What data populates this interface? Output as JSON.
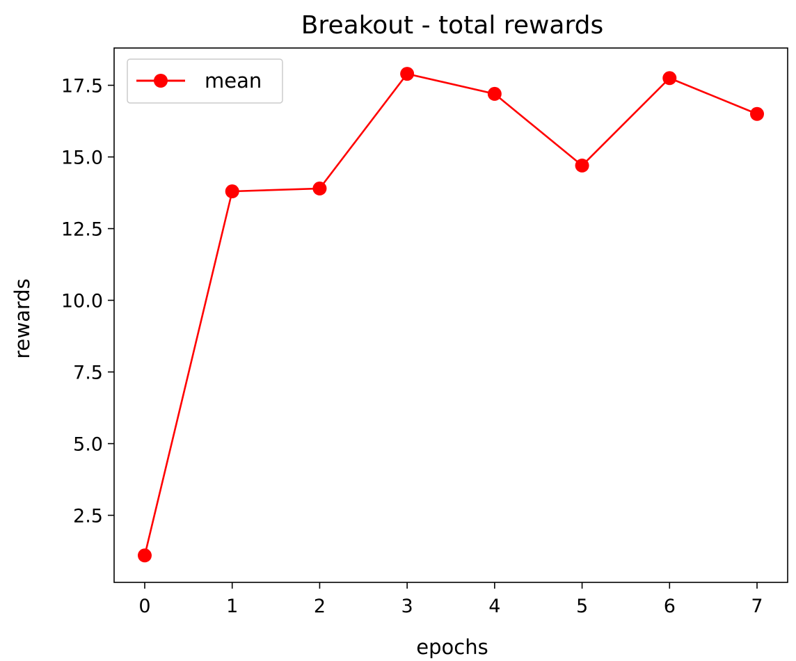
{
  "chart_data": {
    "type": "line",
    "title": "Breakout - total rewards",
    "xlabel": "epochs",
    "ylabel": "rewards",
    "x": [
      0,
      1,
      2,
      3,
      4,
      5,
      6,
      7
    ],
    "xticks": [
      "0",
      "1",
      "2",
      "3",
      "4",
      "5",
      "6",
      "7"
    ],
    "yticks": [
      {
        "value": 2.5,
        "label": "2.5"
      },
      {
        "value": 5.0,
        "label": "5.0"
      },
      {
        "value": 7.5,
        "label": "7.5"
      },
      {
        "value": 10.0,
        "label": "10.0"
      },
      {
        "value": 12.5,
        "label": "12.5"
      },
      {
        "value": 15.0,
        "label": "15.0"
      },
      {
        "value": 17.5,
        "label": "17.5"
      }
    ],
    "xlim": [
      -0.35,
      7.35
    ],
    "ylim": [
      0.16,
      18.8
    ],
    "grid": false,
    "legend_position": "top-left",
    "series": [
      {
        "name": "mean",
        "color": "#ff0000",
        "marker": "circle",
        "values": [
          1.1,
          13.8,
          13.9,
          17.9,
          17.2,
          14.7,
          17.75,
          16.5
        ]
      }
    ]
  }
}
